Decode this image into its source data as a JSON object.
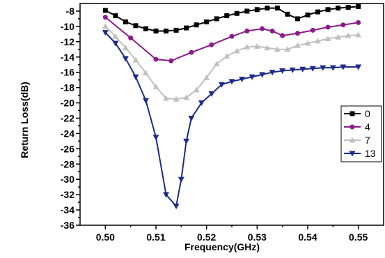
{
  "chart_data": {
    "type": "line",
    "xlabel": "Frequency(GHz)",
    "ylabel": "Return Loss(dB)",
    "xlim": [
      0.495,
      0.555
    ],
    "ylim": [
      -36,
      -7
    ],
    "xticks": [
      0.5,
      0.51,
      0.52,
      0.53,
      0.54,
      0.55
    ],
    "xtick_labels": [
      "0.50",
      "0.51",
      "0.52",
      "0.53",
      "0.54",
      "0.55"
    ],
    "yticks": [
      -8,
      -10,
      -12,
      -14,
      -16,
      -18,
      -20,
      -22,
      -24,
      -26,
      -28,
      -30,
      -32,
      -34,
      -36
    ],
    "grid": false,
    "legend_position": "right",
    "series": [
      {
        "name": "0",
        "color": "#000000",
        "marker": "square",
        "x": [
          0.5,
          0.502,
          0.504,
          0.506,
          0.508,
          0.51,
          0.512,
          0.514,
          0.516,
          0.518,
          0.52,
          0.522,
          0.524,
          0.526,
          0.528,
          0.53,
          0.532,
          0.534,
          0.536,
          0.538,
          0.54,
          0.542,
          0.544,
          0.546,
          0.548,
          0.55
        ],
        "values": [
          -7.9,
          -8.6,
          -9.4,
          -9.9,
          -10.3,
          -10.6,
          -10.6,
          -10.5,
          -10.2,
          -9.8,
          -9.4,
          -9.0,
          -8.6,
          -8.3,
          -8.0,
          -7.8,
          -7.6,
          -7.6,
          -8.4,
          -9.0,
          -8.5,
          -8.1,
          -7.8,
          -7.6,
          -7.5,
          -7.4
        ]
      },
      {
        "name": "4",
        "color": "#8b1a89",
        "marker": "circle",
        "x": [
          0.5,
          0.505,
          0.51,
          0.513,
          0.517,
          0.521,
          0.525,
          0.528,
          0.531,
          0.533,
          0.535,
          0.538,
          0.541,
          0.544,
          0.547,
          0.55
        ],
        "values": [
          -8.8,
          -11.5,
          -14.3,
          -14.5,
          -13.4,
          -12.4,
          -11.3,
          -10.6,
          -10.3,
          -10.6,
          -11.2,
          -10.9,
          -10.5,
          -10.1,
          -9.8,
          -9.5
        ]
      },
      {
        "name": "7",
        "color": "#c0c0c0",
        "marker": "triangle-up",
        "x": [
          0.5,
          0.502,
          0.504,
          0.506,
          0.508,
          0.51,
          0.512,
          0.514,
          0.516,
          0.518,
          0.52,
          0.522,
          0.524,
          0.526,
          0.528,
          0.53,
          0.532,
          0.534,
          0.536,
          0.538,
          0.54,
          0.542,
          0.544,
          0.546,
          0.548,
          0.55
        ],
        "values": [
          -10.0,
          -11.3,
          -12.8,
          -14.4,
          -16.1,
          -17.9,
          -19.4,
          -19.5,
          -19.3,
          -18.3,
          -16.7,
          -14.9,
          -13.9,
          -13.2,
          -12.7,
          -12.6,
          -12.8,
          -13.0,
          -13.0,
          -12.5,
          -12.2,
          -11.9,
          -11.6,
          -11.4,
          -11.2,
          -11.1
        ]
      },
      {
        "name": "13",
        "color": "#1c2a8a",
        "marker": "triangle-down",
        "x": [
          0.5,
          0.502,
          0.504,
          0.506,
          0.508,
          0.51,
          0.512,
          0.514,
          0.515,
          0.516,
          0.517,
          0.519,
          0.521,
          0.523,
          0.525,
          0.527,
          0.529,
          0.531,
          0.533,
          0.535,
          0.537,
          0.539,
          0.541,
          0.543,
          0.545,
          0.547,
          0.55
        ],
        "values": [
          -10.8,
          -12.2,
          -14.2,
          -16.6,
          -19.7,
          -24.5,
          -32.0,
          -33.5,
          -30.0,
          -25.0,
          -22.0,
          -20.0,
          -18.8,
          -17.6,
          -17.2,
          -16.9,
          -16.6,
          -16.3,
          -16.0,
          -15.8,
          -15.7,
          -15.6,
          -15.5,
          -15.4,
          -15.4,
          -15.3,
          -15.3
        ]
      }
    ]
  }
}
